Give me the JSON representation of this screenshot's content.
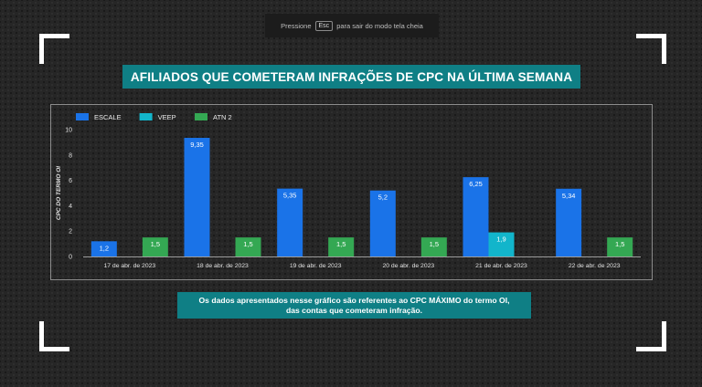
{
  "fullscreen_hint": {
    "prefix": "Pressione",
    "key": "Esc",
    "suffix": "para sair do modo tela cheia"
  },
  "title": "AFILIADOS QUE COMETERAM INFRAÇÕES DE CPC NA ÚLTIMA SEMANA",
  "note": {
    "line1": "Os dados apresentados nesse gráfico são referentes ao CPC MÁXIMO do termo OI,",
    "line2": "das contas que cometeram infração."
  },
  "chart_data": {
    "type": "bar",
    "title": "",
    "xlabel": "",
    "ylabel": "CPC DO TERMO OI",
    "ylim": [
      0,
      10
    ],
    "yticks": [
      0,
      2,
      4,
      6,
      8,
      10
    ],
    "grid": false,
    "legend_position": "top-left",
    "categories": [
      "17 de abr. de 2023",
      "18 de abr. de 2023",
      "19 de abr. de 2023",
      "20 de abr. de 2023",
      "21 de abr. de 2023",
      "22 de abr. de 2023"
    ],
    "series": [
      {
        "name": "ESCALE",
        "color": "#1a73e8",
        "values": [
          1.2,
          9.35,
          5.35,
          5.2,
          6.25,
          5.34
        ],
        "labels": [
          "1,2",
          "9,35",
          "5,35",
          "5,2",
          "6,25",
          "5,34"
        ]
      },
      {
        "name": "VEEP",
        "color": "#12b5cb",
        "values": [
          null,
          null,
          null,
          null,
          1.9,
          null
        ],
        "labels": [
          null,
          null,
          null,
          null,
          "1,9",
          null
        ]
      },
      {
        "name": "ATN 2",
        "color": "#34a853",
        "values": [
          1.5,
          1.5,
          1.5,
          1.5,
          null,
          1.5
        ],
        "labels": [
          "1,5",
          "1,5",
          "1,5",
          "1,5",
          null,
          "1,5"
        ]
      }
    ]
  }
}
